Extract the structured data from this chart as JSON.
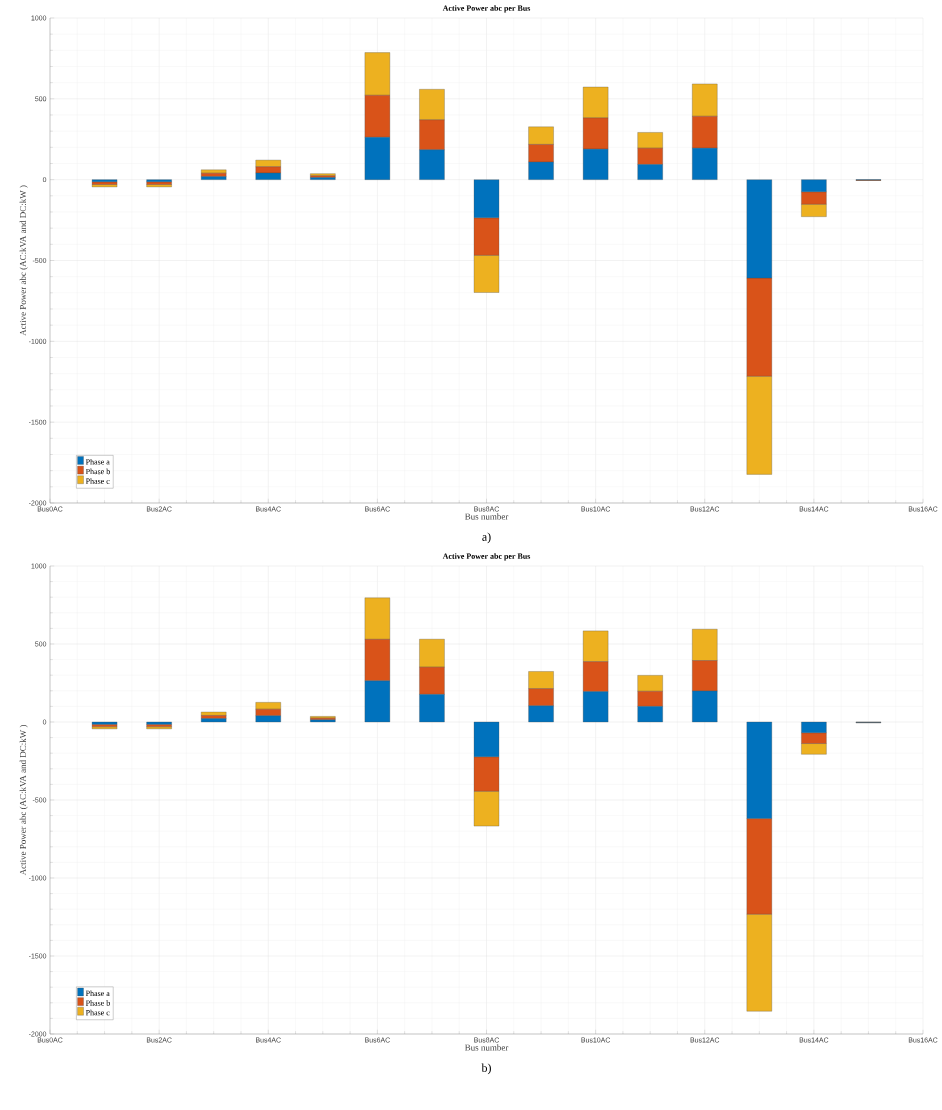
{
  "chart_data": [
    {
      "type": "bar",
      "stacked": true,
      "title": "Active Power abc per Bus",
      "xlabel": "Bus number",
      "ylabel": "Active Power abc (AC:kVA and DC:kW )",
      "categories": [
        "Bus0AC",
        null,
        "Bus2AC",
        null,
        "Bus4AC",
        null,
        "Bus6AC",
        null,
        "Bus8AC",
        null,
        "Bus10AC",
        null,
        "Bus12AC",
        null,
        "Bus14AC",
        null,
        "Bus16AC"
      ],
      "series": [
        {
          "name": "Phase a",
          "color": "#0072bd",
          "values": [
            null,
            -13,
            -13,
            19,
            41,
            13,
            262,
            185,
            -236,
            109,
            189,
            94,
            195,
            -609,
            -75,
            -2,
            null
          ]
        },
        {
          "name": "Phase b",
          "color": "#d95319",
          "values": [
            null,
            -17,
            -17,
            21,
            39,
            11,
            260,
            185,
            -232,
            109,
            193,
            101,
            197,
            -607,
            -77,
            -2,
            null
          ]
        },
        {
          "name": "Phase c",
          "color": "#edb120",
          "values": [
            null,
            -15,
            -15,
            21,
            41,
            13,
            264,
            189,
            -230,
            109,
            191,
            97,
            200,
            -607,
            -77,
            -1,
            null
          ]
        }
      ],
      "ylim": [
        -2000,
        1000
      ],
      "yticks": [
        -2000,
        -1500,
        -1000,
        -500,
        0,
        500,
        1000
      ],
      "grid": true,
      "legend": "bottom left",
      "annotations": [
        "a)"
      ]
    },
    {
      "type": "bar",
      "stacked": true,
      "title": "Active Power abc per Bus",
      "xlabel": "Bus number",
      "ylabel": "Active Power abc (AC:kVA and DC:kW )",
      "categories": [
        "Bus0AC",
        null,
        "Bus2AC",
        null,
        "Bus4AC",
        null,
        "Bus6AC",
        null,
        "Bus8AC",
        null,
        "Bus10AC",
        null,
        "Bus12AC",
        null,
        "Bus14AC",
        null,
        "Bus16AC"
      ],
      "series": [
        {
          "name": "Phase a",
          "color": "#0072bd",
          "values": [
            null,
            -15,
            -15,
            22,
            40,
            14,
            264,
            177,
            -223,
            104,
            195,
            100,
            199,
            -619,
            -69,
            -2,
            null
          ]
        },
        {
          "name": "Phase b",
          "color": "#d95319",
          "values": [
            null,
            -15,
            -15,
            20,
            42,
            11,
            266,
            175,
            -221,
            110,
            192,
            97,
            195,
            -613,
            -69,
            -2,
            null
          ]
        },
        {
          "name": "Phase c",
          "color": "#edb120",
          "values": [
            null,
            -14,
            -14,
            22,
            44,
            11,
            266,
            179,
            -223,
            110,
            197,
            102,
            201,
            -622,
            -69,
            -1,
            null
          ]
        }
      ],
      "ylim": [
        -2000,
        1000
      ],
      "yticks": [
        -2000,
        -1500,
        -1000,
        -500,
        0,
        500,
        1000
      ],
      "grid": true,
      "legend": "bottom left",
      "annotations": [
        "b)"
      ]
    }
  ]
}
